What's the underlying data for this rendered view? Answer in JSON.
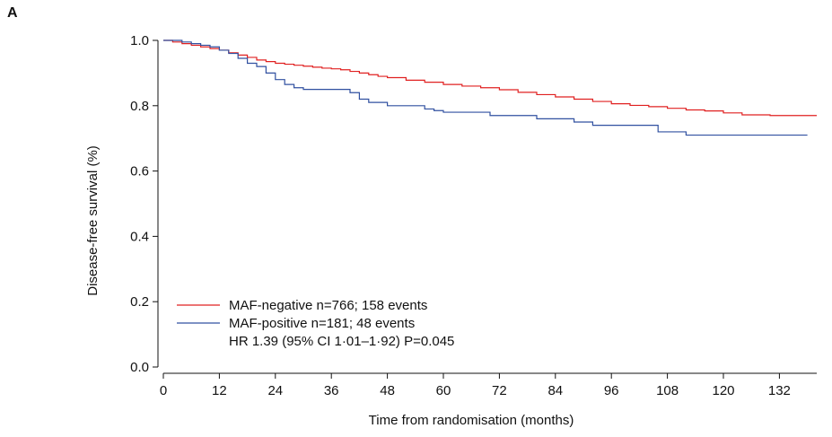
{
  "panel_label": "A",
  "chart_data": {
    "type": "line",
    "title": "",
    "xlabel": "Time from randomisation (months)",
    "ylabel": "Disease-free survival (%)",
    "xlim": [
      0,
      140
    ],
    "ylim": [
      0,
      1.0
    ],
    "x_ticks": [
      0,
      12,
      24,
      36,
      48,
      60,
      72,
      84,
      96,
      108,
      120,
      132
    ],
    "y_ticks": [
      0.0,
      0.2,
      0.4,
      0.6,
      0.8,
      1.0
    ],
    "y_tick_labels": [
      "0.0",
      "0.2",
      "0.4",
      "0.6",
      "0.8",
      "1.0"
    ],
    "grid": false,
    "legend_position": "bottom-left",
    "series": [
      {
        "name": "MAF-negative n=766; 158 events",
        "color": "#e02020",
        "step": true,
        "x": [
          0,
          2,
          4,
          6,
          8,
          10,
          12,
          14,
          16,
          18,
          20,
          22,
          24,
          26,
          28,
          30,
          32,
          34,
          36,
          38,
          40,
          42,
          44,
          46,
          48,
          52,
          56,
          60,
          64,
          68,
          72,
          76,
          80,
          84,
          88,
          92,
          96,
          100,
          104,
          108,
          112,
          116,
          120,
          124,
          130,
          136,
          140
        ],
        "y": [
          1.0,
          0.995,
          0.99,
          0.985,
          0.98,
          0.975,
          0.97,
          0.962,
          0.955,
          0.948,
          0.94,
          0.935,
          0.93,
          0.927,
          0.924,
          0.921,
          0.918,
          0.915,
          0.913,
          0.91,
          0.905,
          0.9,
          0.895,
          0.89,
          0.886,
          0.878,
          0.872,
          0.865,
          0.86,
          0.855,
          0.849,
          0.841,
          0.834,
          0.827,
          0.82,
          0.813,
          0.806,
          0.801,
          0.797,
          0.792,
          0.787,
          0.784,
          0.778,
          0.772,
          0.77,
          0.77,
          0.77
        ]
      },
      {
        "name": "MAF-positive n=181; 48 events",
        "color": "#3050a0",
        "step": true,
        "x": [
          0,
          4,
          6,
          8,
          10,
          12,
          14,
          16,
          18,
          20,
          22,
          24,
          26,
          28,
          30,
          32,
          36,
          40,
          42,
          44,
          48,
          50,
          52,
          56,
          58,
          60,
          66,
          70,
          76,
          80,
          88,
          92,
          96,
          100,
          106,
          108,
          112,
          116,
          120,
          132,
          138
        ],
        "y": [
          1.0,
          0.995,
          0.99,
          0.985,
          0.98,
          0.97,
          0.96,
          0.945,
          0.93,
          0.92,
          0.9,
          0.88,
          0.865,
          0.855,
          0.85,
          0.85,
          0.85,
          0.84,
          0.82,
          0.81,
          0.8,
          0.8,
          0.8,
          0.79,
          0.785,
          0.78,
          0.78,
          0.77,
          0.77,
          0.76,
          0.75,
          0.74,
          0.74,
          0.74,
          0.72,
          0.72,
          0.71,
          0.71,
          0.71,
          0.71,
          0.71
        ]
      }
    ],
    "annotations": [
      "HR 1.39 (95% CI 1·01–1·92)  P=0.045"
    ]
  }
}
